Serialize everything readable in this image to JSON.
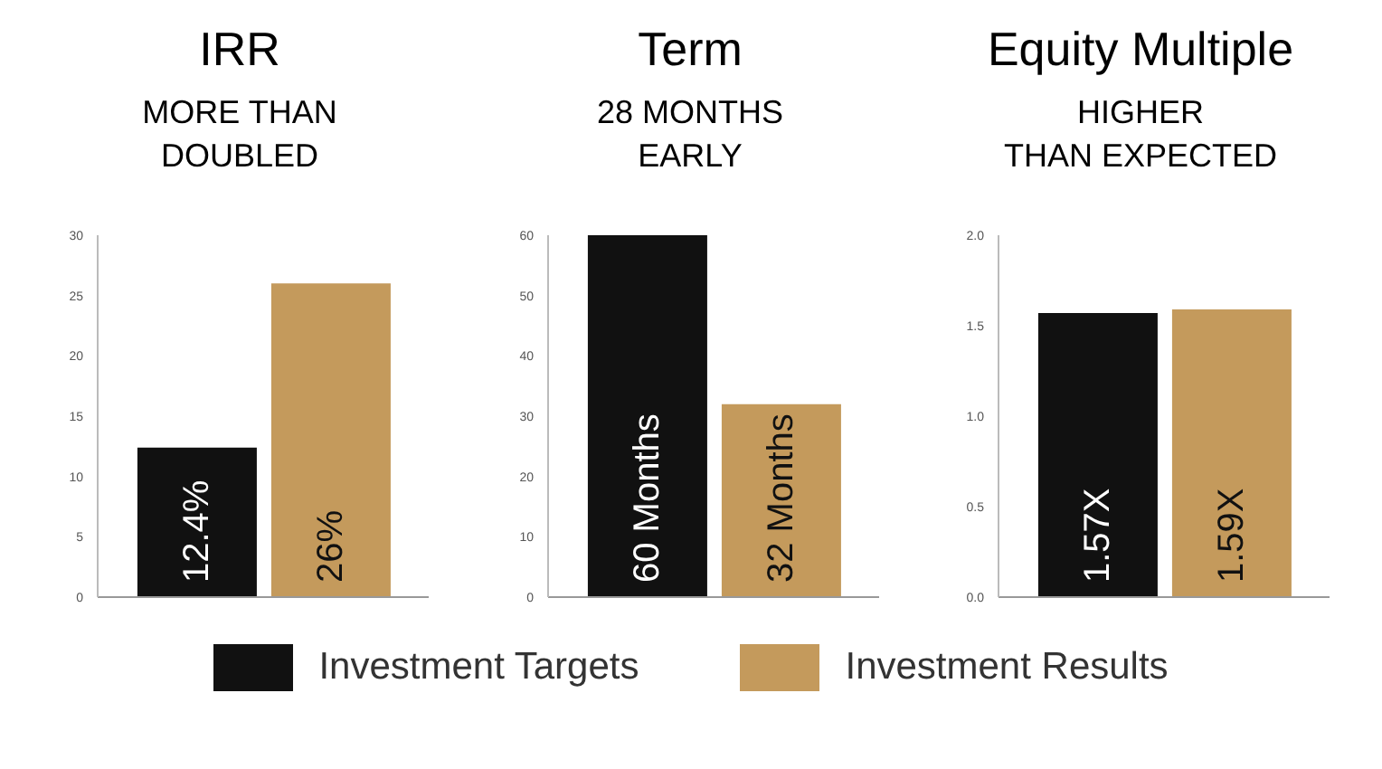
{
  "chart_data": [
    {
      "type": "bar",
      "title": "IRR",
      "subtitle": "MORE THAN\nDOUBLED",
      "categories": [
        null
      ],
      "ylim": [
        0,
        30
      ],
      "yticks": [
        0,
        5,
        10,
        15,
        20,
        25,
        30
      ],
      "grid": false,
      "legend": "bottom",
      "series": [
        {
          "name": "Investment Targets",
          "color": "#111111",
          "values": [
            12.4
          ],
          "value_labels": [
            "12.4%"
          ]
        },
        {
          "name": "Investment Results",
          "color": "#c49a5c",
          "values": [
            26
          ],
          "value_labels": [
            "26%"
          ]
        }
      ]
    },
    {
      "type": "bar",
      "title": "Term",
      "subtitle": "28 MONTHS\nEARLY",
      "categories": [
        null
      ],
      "ylim": [
        0,
        60
      ],
      "yticks": [
        0,
        10,
        20,
        30,
        40,
        50,
        60
      ],
      "grid": false,
      "series": [
        {
          "color": "#111111",
          "values": [
            60
          ],
          "value_labels": [
            "60 Months"
          ]
        },
        {
          "color": "#c49a5c",
          "values": [
            32
          ],
          "value_labels": [
            "32 Months"
          ]
        }
      ]
    },
    {
      "type": "bar",
      "title": "Equity Multiple",
      "subtitle": "HIGHER\nTHAN EXPECTED",
      "categories": [
        null
      ],
      "ylim": [
        0,
        2
      ],
      "yticks": [
        {
          "value": 0,
          "label": "0.0"
        },
        {
          "value": 0.5,
          "label": "0.5"
        },
        {
          "value": 1,
          "label": "1.0"
        },
        {
          "value": 1.5,
          "label": "1.5"
        },
        {
          "value": 2,
          "label": "2.0"
        }
      ],
      "grid": false,
      "series": [
        {
          "color": "#111111",
          "values": [
            1.57
          ],
          "value_labels": [
            "1.57X"
          ]
        },
        {
          "color": "#c49a5c",
          "values": [
            1.59
          ],
          "value_labels": [
            "1.59X"
          ]
        }
      ]
    }
  ]
}
